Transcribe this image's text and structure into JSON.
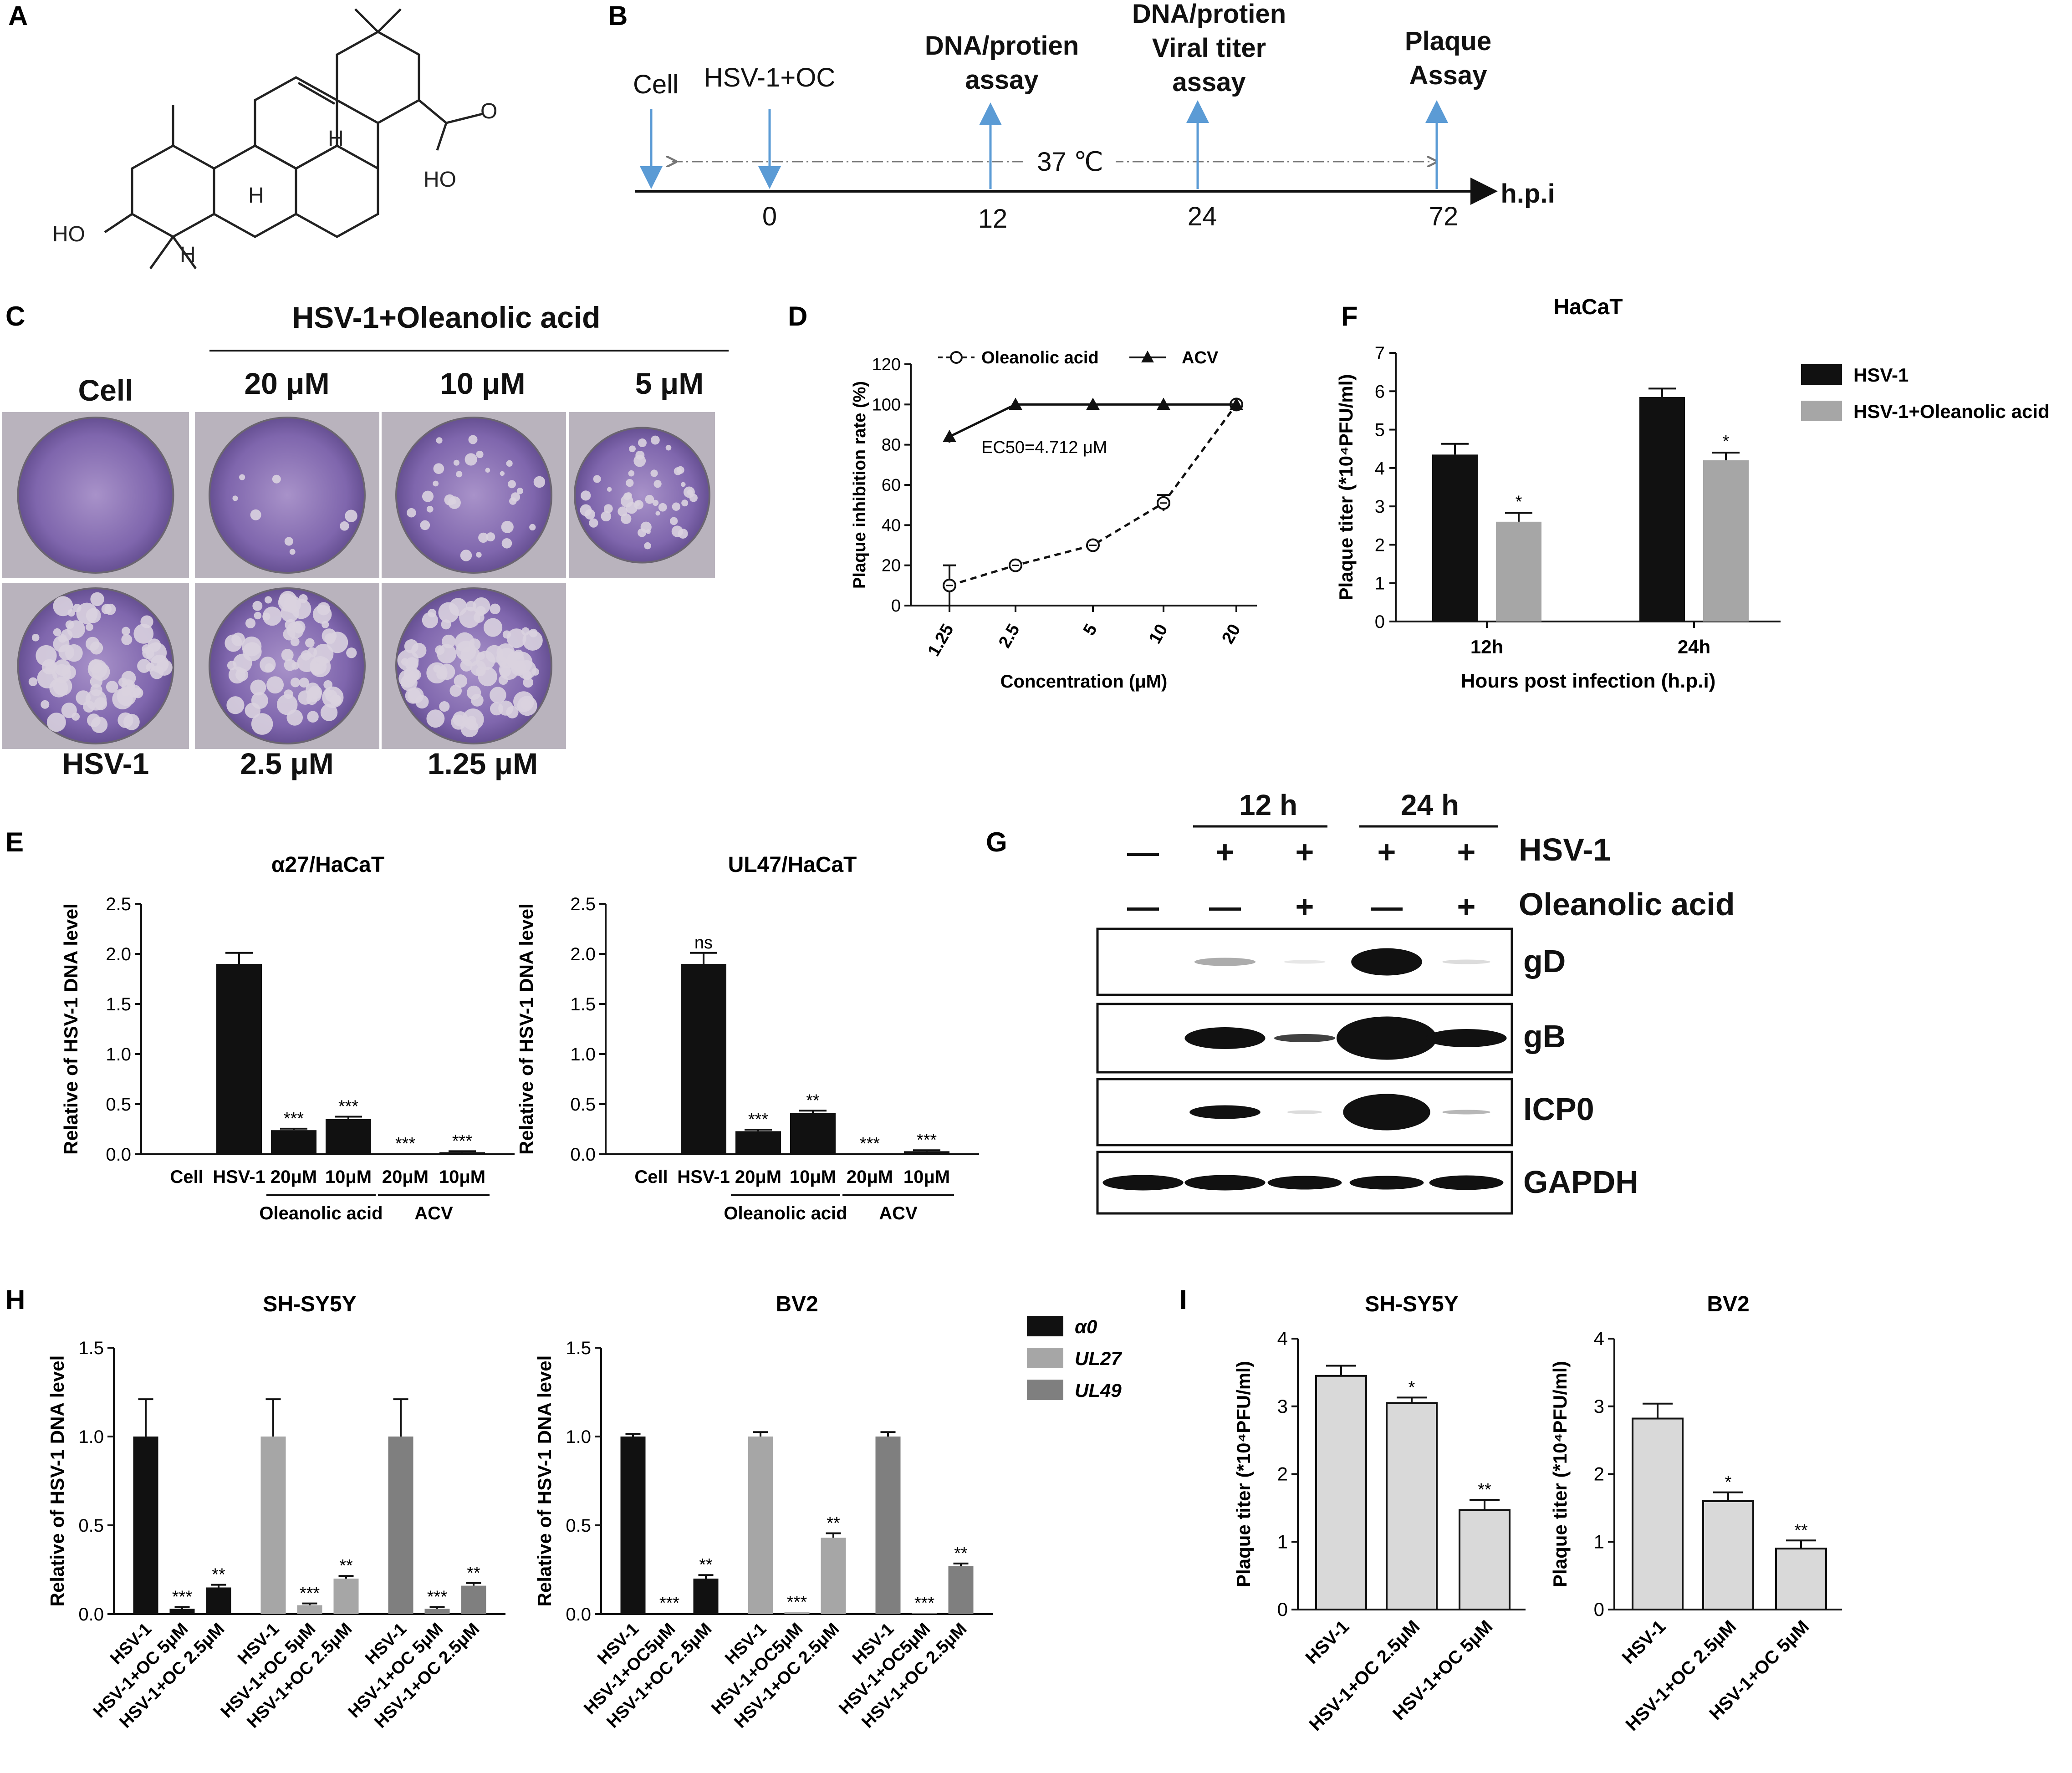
{
  "panels": {
    "A": "A",
    "B": "B",
    "C": "C",
    "D": "D",
    "E": "E",
    "F": "F",
    "G": "G",
    "H": "H",
    "I": "I"
  },
  "panel_a": {
    "oh1": "HO",
    "oh2": "HO",
    "o": "O",
    "h1": "H",
    "h2": "H",
    "h3": "H"
  },
  "panel_b": {
    "events": [
      "Cell",
      "HSV-1+OC",
      "DNA/protien",
      "assay",
      "DNA/protien",
      "Viral titer",
      "assay",
      "Plaque",
      "Assay"
    ],
    "temp": "37 ℃",
    "ticks": [
      "0",
      "12",
      "24",
      "72"
    ],
    "axis": "h.p.i"
  },
  "panel_c": {
    "header": "HSV-1+Oleanolic acid",
    "top_labels": [
      "Cell",
      "20 μM",
      "10 μM",
      "5 μM"
    ],
    "bottom_labels": [
      "HSV-1",
      "2.5 μM",
      "1.25 μM"
    ]
  },
  "panel_g": {
    "time_labels": [
      "12 h",
      "24 h"
    ],
    "row_hsv": [
      "—",
      "+",
      "+",
      "+",
      "+"
    ],
    "row_hsv_label": "HSV-1",
    "row_oa": [
      "—",
      "—",
      "+",
      "—",
      "+"
    ],
    "row_oa_label": "Oleanolic acid",
    "blots": [
      "gD",
      "gB",
      "ICP0",
      "GAPDH"
    ]
  },
  "colors": {
    "accent_arrow": "#5b9bd5",
    "black_bar": "#111111",
    "gray_bar": "#a6a6a6",
    "dark_gray_bar": "#7f7f7f",
    "light_bar": "#d9d9d9",
    "plate": "#7a5fa8"
  },
  "chart_data": [
    {
      "id": "D",
      "type": "line",
      "title": "",
      "xlabel": "Concentration (μM)",
      "ylabel": "Plaque inhibition rate (%)",
      "categories": [
        "1.25",
        "2.5",
        "5",
        "10",
        "20"
      ],
      "ylim": [
        0,
        120
      ],
      "yticks": [
        "0",
        "20",
        "40",
        "60",
        "80",
        "100",
        "120"
      ],
      "series": [
        {
          "name": "Oleanolic acid",
          "values": [
            10,
            20,
            30,
            51,
            100
          ],
          "errors": [
            10,
            0,
            0,
            4,
            0
          ],
          "style": "dashed-open-circle"
        },
        {
          "name": "ACV",
          "values": [
            84,
            100,
            100,
            100,
            100
          ],
          "errors": [
            3,
            0,
            0,
            0,
            0
          ],
          "style": "solid-triangle"
        }
      ],
      "annotation": "EC50=4.712 μM"
    },
    {
      "id": "F",
      "type": "bar",
      "title": "HaCaT",
      "xlabel": "Hours post infection (h.p.i)",
      "ylabel": "Plaque titer (*10⁴PFU/ml)",
      "categories": [
        "12h",
        "24h"
      ],
      "ylim": [
        0,
        7
      ],
      "yticks": [
        "0",
        "1",
        "2",
        "3",
        "4",
        "5",
        "6",
        "7"
      ],
      "series": [
        {
          "name": "HSV-1",
          "values": [
            4.35,
            5.85
          ],
          "errors": [
            0.28,
            0.22
          ],
          "sig": [
            "",
            ""
          ]
        },
        {
          "name": "HSV-1+Oleanolic acid",
          "values": [
            2.6,
            4.2
          ],
          "errors": [
            0.23,
            0.2
          ],
          "sig": [
            "*",
            "*"
          ]
        }
      ]
    },
    {
      "id": "E1",
      "type": "bar",
      "title": "α27/HaCaT",
      "ylabel": "Relative of HSV-1 DNA level",
      "categories": [
        "Cell",
        "HSV-1",
        "20μM",
        "10μM",
        "20μM",
        "10μM"
      ],
      "values": [
        0,
        1.9,
        0.24,
        0.35,
        0.005,
        0.02
      ],
      "errors": [
        0,
        0.11,
        0.015,
        0.025,
        0,
        0.01
      ],
      "sig": [
        "",
        "",
        "***",
        "***",
        "***",
        "***"
      ],
      "groups": [
        "Oleanolic acid",
        "ACV"
      ],
      "ylim": [
        0,
        2.5
      ],
      "yticks": [
        "0.0",
        "0.5",
        "1.0",
        "1.5",
        "2.0",
        "2.5"
      ]
    },
    {
      "id": "E2",
      "type": "bar",
      "title": "UL47/HaCaT",
      "ylabel": "Relative of HSV-1 DNA level",
      "categories": [
        "Cell",
        "HSV-1",
        "20μM",
        "10μM",
        "20μM",
        "10μM"
      ],
      "values": [
        0,
        1.9,
        0.23,
        0.41,
        0.005,
        0.03
      ],
      "errors": [
        0,
        0.11,
        0.015,
        0.025,
        0,
        0.01
      ],
      "sig": [
        "",
        "ns",
        "***",
        "**",
        "***",
        "***"
      ],
      "groups": [
        "Oleanolic acid",
        "ACV"
      ],
      "ylim": [
        0,
        2.5
      ],
      "yticks": [
        "0.0",
        "0.5",
        "1.0",
        "1.5",
        "2.0",
        "2.5"
      ]
    },
    {
      "id": "H1",
      "type": "bar",
      "title": "SH-SY5Y",
      "ylabel": "Relative of HSV-1 DNA level",
      "categories": [
        "HSV-1",
        "HSV-1+OC 5μM",
        "HSV-1+OC 2.5μM",
        "HSV-1",
        "HSV-1+OC 5μM",
        "HSV-1+OC 2.5μM",
        "HSV-1",
        "HSV-1+OC 5μM",
        "HSV-1+OC 2.5μM"
      ],
      "values": [
        1.0,
        0.03,
        0.15,
        1.0,
        0.05,
        0.2,
        1.0,
        0.03,
        0.16
      ],
      "errors": [
        0.21,
        0.01,
        0.015,
        0.21,
        0.01,
        0.015,
        0.21,
        0.01,
        0.015
      ],
      "sig": [
        "",
        "***",
        "**",
        "",
        "***",
        "**",
        "",
        "***",
        "**"
      ],
      "series_index": [
        0,
        0,
        0,
        1,
        1,
        1,
        2,
        2,
        2
      ],
      "ylim": [
        0,
        1.5
      ],
      "yticks": [
        "0.0",
        "0.5",
        "1.0",
        "1.5"
      ]
    },
    {
      "id": "H2",
      "type": "bar",
      "title": "BV2",
      "ylabel": "Relative of HSV-1 DNA level",
      "categories": [
        "HSV-1",
        "HSV-1+OC5μM",
        "HSV-1+OC 2.5μM",
        "HSV-1",
        "HSV-1+OC5μM",
        "HSV-1+OC 2.5μM",
        "HSV-1",
        "HSV-1+OC5μM",
        "HSV-1+OC 2.5μM"
      ],
      "values": [
        1.0,
        0.005,
        0.2,
        1.0,
        0.01,
        0.43,
        1.0,
        0.005,
        0.27
      ],
      "errors": [
        0.015,
        0,
        0.02,
        0.025,
        0,
        0.025,
        0.025,
        0,
        0.015
      ],
      "sig": [
        "",
        "***",
        "**",
        "",
        "***",
        "**",
        "",
        "***",
        "**"
      ],
      "series_index": [
        0,
        0,
        0,
        1,
        1,
        1,
        2,
        2,
        2
      ],
      "ylim": [
        0,
        1.5
      ],
      "yticks": [
        "0.0",
        "0.5",
        "1.0",
        "1.5"
      ],
      "legend": [
        "α0",
        "UL27",
        "UL49"
      ]
    },
    {
      "id": "I1",
      "type": "bar",
      "title": "SH-SY5Y",
      "ylabel": "Plaque titer (*10⁴PFU/ml)",
      "categories": [
        "HSV-1",
        "HSV-1+OC 2.5μM",
        "HSV-1+OC 5μM"
      ],
      "values": [
        3.45,
        3.05,
        1.47
      ],
      "errors": [
        0.15,
        0.08,
        0.15
      ],
      "sig": [
        "",
        "*",
        "**"
      ],
      "ylim": [
        0,
        4
      ],
      "yticks": [
        "0",
        "1",
        "2",
        "3",
        "4"
      ]
    },
    {
      "id": "I2",
      "type": "bar",
      "title": "BV2",
      "ylabel": "Plaque titer (*10⁴PFU/ml)",
      "categories": [
        "HSV-1",
        "HSV-1+OC 2.5μM",
        "HSV-1+OC 5μM"
      ],
      "values": [
        2.82,
        1.6,
        0.9
      ],
      "errors": [
        0.22,
        0.13,
        0.12
      ],
      "sig": [
        "",
        "*",
        "**"
      ],
      "ylim": [
        0,
        4
      ],
      "yticks": [
        "0",
        "1",
        "2",
        "3",
        "4"
      ]
    }
  ]
}
